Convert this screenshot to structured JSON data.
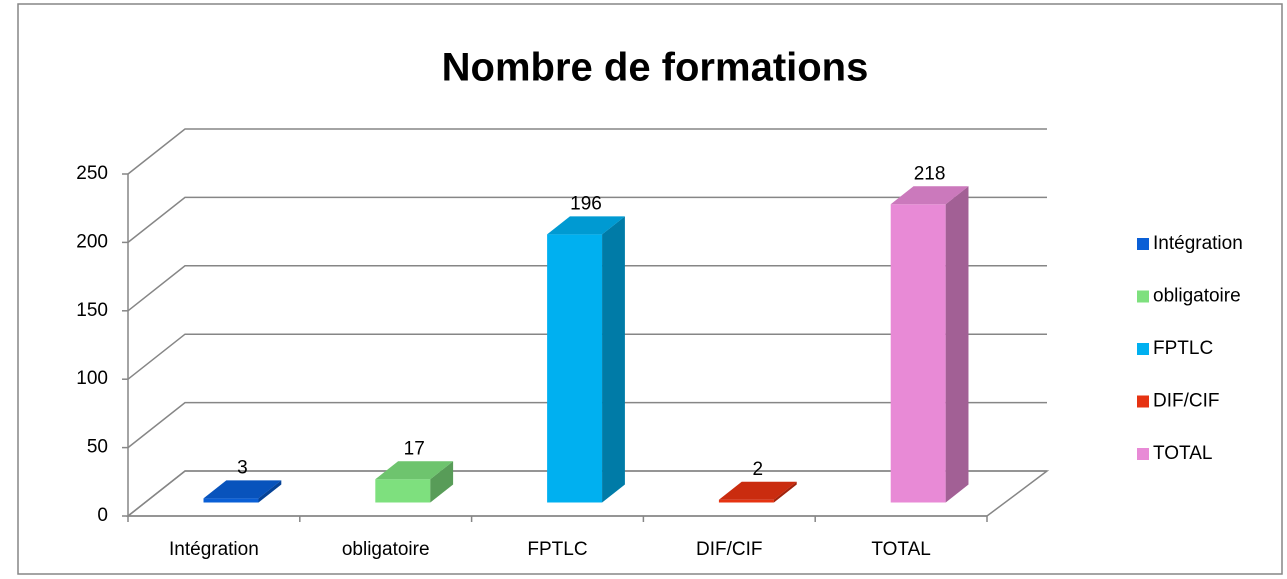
{
  "chart_data": {
    "type": "bar3d",
    "title": "Nombre de formations",
    "categories": [
      "Intégration",
      "obligatoire",
      "FPTLC",
      "DIF/CIF",
      "TOTAL"
    ],
    "values": [
      3,
      17,
      196,
      2,
      218
    ],
    "colors": [
      "#0a5fd6",
      "#7ee07e",
      "#00b0f0",
      "#e63312",
      "#e88ad6"
    ],
    "ylim": [
      0,
      250
    ],
    "yticks": [
      0,
      50,
      100,
      150,
      200,
      250
    ],
    "grid": true,
    "legend": "right",
    "data_labels": true
  }
}
